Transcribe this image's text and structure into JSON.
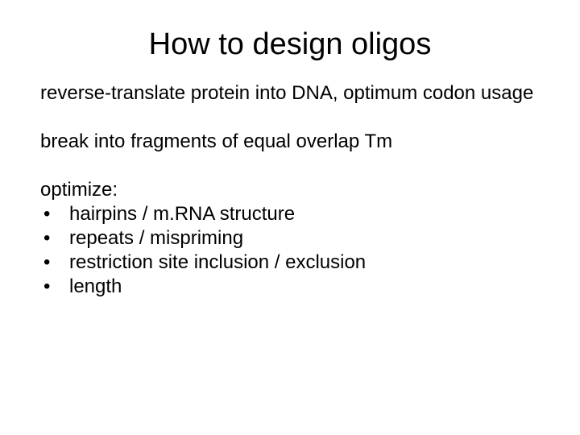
{
  "title": "How to design oligos",
  "para1": "reverse-translate protein into DNA, optimum codon usage",
  "para2": "break into fragments of equal overlap Tm",
  "optimize_label": "optimize:",
  "bullets": {
    "b0": "hairpins / m.RNA structure",
    "b1": "repeats / mispriming",
    "b2": "restriction site inclusion / exclusion",
    "b3": "length"
  },
  "colors": {
    "background": "#ffffff",
    "text": "#000000"
  },
  "typography": {
    "title_fontsize_pt": 29,
    "body_fontsize_pt": 18,
    "font_family": "Arial"
  }
}
